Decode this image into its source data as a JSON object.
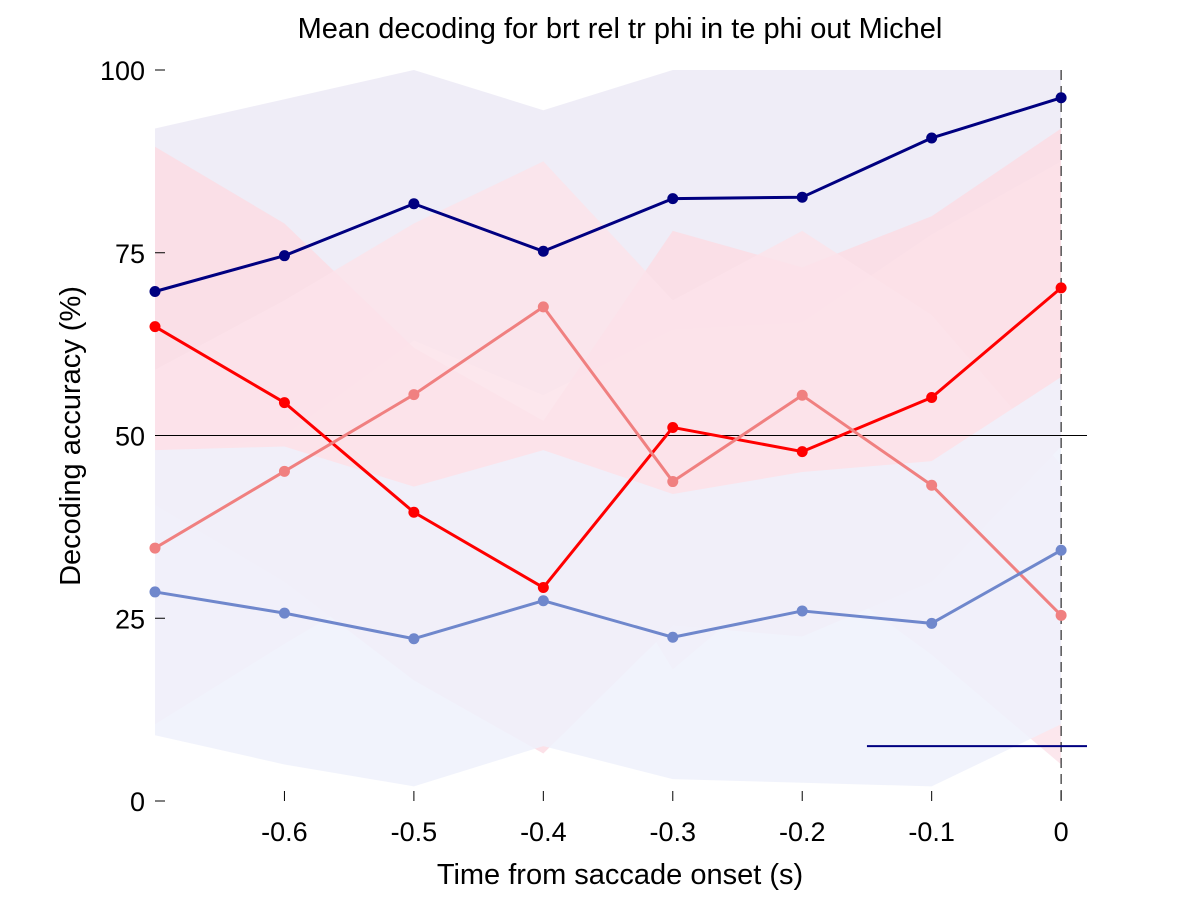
{
  "chart_data": {
    "type": "line",
    "title": "Mean decoding for brt rel tr phi in te phi out  Michel",
    "xlabel": "Time from saccade onset (s)",
    "ylabel": "Decoding accuracy (%)",
    "xlim": [
      -0.7,
      0.02
    ],
    "ylim": [
      0,
      100
    ],
    "x_ticks": [
      -0.6,
      -0.5,
      -0.4,
      -0.3,
      -0.2,
      -0.1,
      0
    ],
    "x_tick_labels": [
      "-0.6",
      "-0.5",
      "-0.4",
      "-0.3",
      "-0.2",
      "-0.1",
      "0"
    ],
    "y_ticks": [
      0,
      25,
      50,
      75,
      100
    ],
    "y_tick_labels": [
      "0",
      "25",
      "50",
      "75",
      "100"
    ],
    "x": [
      -0.7,
      -0.6,
      -0.5,
      -0.4,
      -0.3,
      -0.2,
      -0.1,
      0
    ],
    "series": [
      {
        "color": "#000080",
        "band_color": "#ECEAF6",
        "values": [
          69.7,
          74.6,
          81.7,
          75.2,
          82.4,
          82.6,
          90.7,
          96.2
        ],
        "band_upper": [
          92,
          96,
          100,
          94.5,
          100,
          100,
          100,
          100
        ],
        "band_lower": [
          47,
          50,
          63,
          55.5,
          64.5,
          65.5,
          77.5,
          87.5
        ]
      },
      {
        "color": "#FF0000",
        "band_color": "#FBDCE4",
        "values": [
          64.9,
          54.5,
          39.5,
          29.2,
          51.1,
          47.8,
          55.2,
          70.2
        ],
        "band_upper": [
          89.5,
          79,
          62,
          52,
          78,
          73,
          80,
          92
        ],
        "band_lower": [
          40.5,
          30,
          16.5,
          6.5,
          24,
          22.5,
          30,
          48.5
        ]
      },
      {
        "color": "#F08080",
        "band_color": "#FBE3EA",
        "values": [
          34.6,
          45.1,
          55.6,
          67.6,
          43.7,
          55.5,
          43.2,
          25.4
        ],
        "band_upper": [
          59,
          68.5,
          79,
          87.5,
          68.5,
          78,
          66.5,
          46
        ],
        "band_lower": [
          10.5,
          21.5,
          32,
          47,
          18,
          33,
          20,
          5
        ]
      },
      {
        "color": "#6F87CC",
        "band_color": "#EFF1FB",
        "values": [
          28.6,
          25.7,
          22.2,
          27.4,
          22.4,
          26.0,
          24.3,
          34.3
        ],
        "band_upper": [
          48,
          48.5,
          43,
          48,
          42,
          45,
          46.5,
          58
        ],
        "band_lower": [
          9,
          5,
          2,
          7.5,
          3,
          2.5,
          2,
          10.5
        ]
      }
    ],
    "reference_lines": [
      {
        "type": "horizontal",
        "y": 50,
        "style": "solid",
        "color": "#000000"
      },
      {
        "type": "vertical",
        "x": 0,
        "style": "dashed",
        "color": "#000000"
      }
    ],
    "significance_bar": {
      "x_start": -0.15,
      "x_end": 0.02,
      "y": 7.5,
      "color": "#000080"
    },
    "grid": false,
    "legend": "none"
  }
}
